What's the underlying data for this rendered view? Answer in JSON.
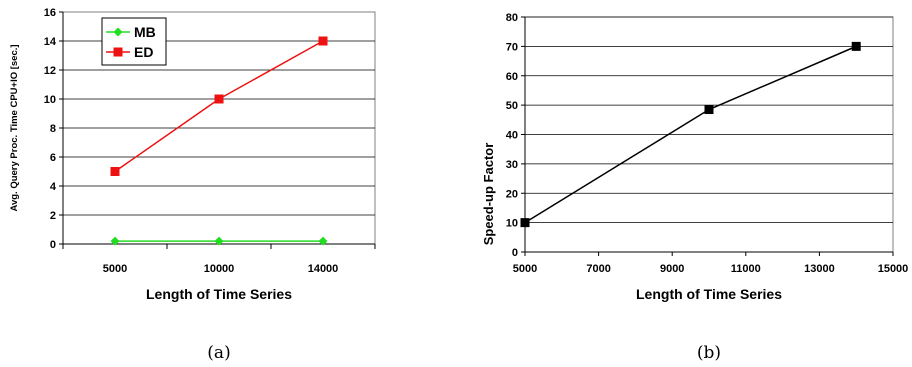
{
  "chart_data": [
    {
      "type": "line",
      "categories": [
        "5000",
        "10000",
        "14000"
      ],
      "series": [
        {
          "name": "MB",
          "values": [
            0.2,
            0.2,
            0.2
          ],
          "color": "#22dd22",
          "marker": "diamond"
        },
        {
          "name": "ED",
          "values": [
            5,
            10,
            14
          ],
          "color": "#ee1111",
          "marker": "square"
        }
      ],
      "yticks": [
        "0",
        "2",
        "4",
        "6",
        "8",
        "10",
        "12",
        "14",
        "16"
      ],
      "ylim": [
        0,
        16
      ],
      "xlabel": "Length of Time Series",
      "ylabel": "Avg. Query Proc. Time CPU+IO [sec.]",
      "grid": true,
      "legend": "top-left",
      "caption": "(a)"
    },
    {
      "type": "line",
      "x": [
        5000,
        10000,
        14000
      ],
      "series": [
        {
          "values": [
            10,
            48.5,
            70
          ],
          "color": "#000000",
          "marker": "square"
        }
      ],
      "xticks": [
        "5000",
        "7000",
        "9000",
        "11000",
        "13000",
        "15000"
      ],
      "xlim": [
        5000,
        15000
      ],
      "yticks": [
        "0",
        "10",
        "20",
        "30",
        "40",
        "50",
        "60",
        "70",
        "80"
      ],
      "ylim": [
        0,
        80
      ],
      "xlabel": "Length of Time Series",
      "ylabel": "Speed-up Factor",
      "grid": true,
      "caption": "(b)"
    }
  ]
}
